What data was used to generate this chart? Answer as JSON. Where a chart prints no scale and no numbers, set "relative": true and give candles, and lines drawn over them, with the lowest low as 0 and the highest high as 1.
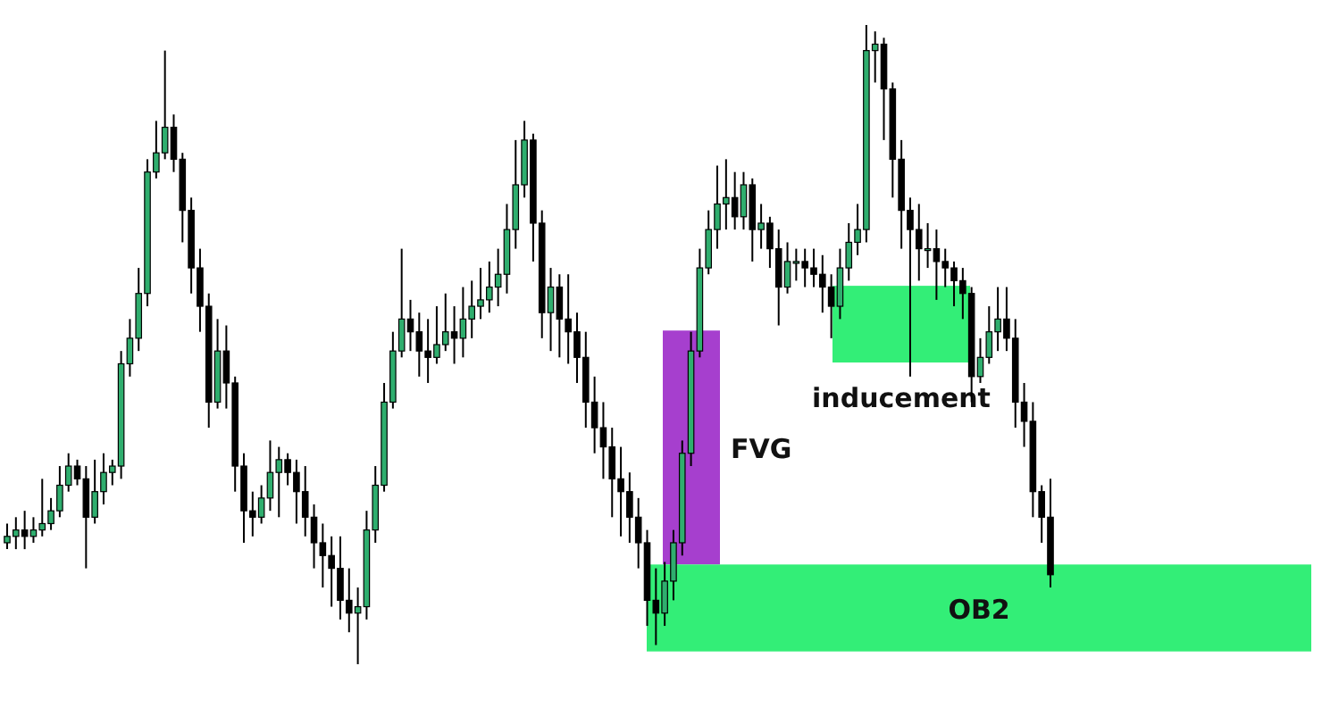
{
  "chart_data": {
    "type": "candlestick",
    "relative": true,
    "categories": [
      null,
      null,
      null,
      null,
      null,
      null,
      null,
      null,
      null,
      null,
      null,
      null,
      null,
      null,
      null,
      null,
      null,
      null,
      null,
      null,
      null,
      null,
      null,
      null,
      null,
      null,
      null,
      null,
      null,
      null,
      null,
      null,
      null,
      null,
      null,
      null,
      null,
      null,
      null,
      null,
      null,
      null,
      null,
      null,
      null,
      null,
      null,
      null,
      null,
      null,
      null,
      null,
      null,
      null,
      null,
      null,
      null,
      null,
      null,
      null,
      null,
      null,
      null,
      null,
      null,
      null,
      null,
      null,
      null,
      null,
      null,
      null,
      null,
      null,
      null,
      null,
      null,
      null,
      null,
      null,
      null,
      null,
      null,
      null,
      null,
      null,
      null,
      null,
      null,
      null,
      null,
      null,
      null,
      null,
      null,
      null,
      null,
      null,
      null,
      null,
      null,
      null,
      null,
      null,
      null,
      null,
      null,
      null,
      null,
      null,
      null,
      null,
      null,
      null,
      null,
      null,
      null,
      null,
      null,
      null
    ],
    "ohlc": [
      [
        0.19,
        0.22,
        0.18,
        0.2
      ],
      [
        0.2,
        0.23,
        0.18,
        0.21
      ],
      [
        0.21,
        0.24,
        0.18,
        0.2
      ],
      [
        0.2,
        0.23,
        0.19,
        0.21
      ],
      [
        0.21,
        0.29,
        0.2,
        0.22
      ],
      [
        0.22,
        0.26,
        0.21,
        0.24
      ],
      [
        0.24,
        0.31,
        0.23,
        0.28
      ],
      [
        0.28,
        0.33,
        0.27,
        0.31
      ],
      [
        0.31,
        0.32,
        0.28,
        0.29
      ],
      [
        0.29,
        0.31,
        0.15,
        0.23
      ],
      [
        0.23,
        0.32,
        0.22,
        0.27
      ],
      [
        0.27,
        0.33,
        0.25,
        0.3
      ],
      [
        0.3,
        0.32,
        0.28,
        0.31
      ],
      [
        0.31,
        0.49,
        0.29,
        0.47
      ],
      [
        0.47,
        0.54,
        0.45,
        0.51
      ],
      [
        0.51,
        0.62,
        0.49,
        0.58
      ],
      [
        0.58,
        0.79,
        0.56,
        0.77
      ],
      [
        0.77,
        0.85,
        0.76,
        0.8
      ],
      [
        0.8,
        0.96,
        0.79,
        0.84
      ],
      [
        0.84,
        0.86,
        0.77,
        0.79
      ],
      [
        0.79,
        0.8,
        0.66,
        0.71
      ],
      [
        0.71,
        0.73,
        0.58,
        0.62
      ],
      [
        0.62,
        0.65,
        0.52,
        0.56
      ],
      [
        0.56,
        0.58,
        0.37,
        0.41
      ],
      [
        0.41,
        0.54,
        0.4,
        0.49
      ],
      [
        0.49,
        0.53,
        0.4,
        0.44
      ],
      [
        0.44,
        0.45,
        0.27,
        0.31
      ],
      [
        0.31,
        0.33,
        0.19,
        0.24
      ],
      [
        0.24,
        0.27,
        0.2,
        0.23
      ],
      [
        0.23,
        0.28,
        0.22,
        0.26
      ],
      [
        0.26,
        0.35,
        0.24,
        0.3
      ],
      [
        0.3,
        0.34,
        0.23,
        0.32
      ],
      [
        0.32,
        0.33,
        0.28,
        0.3
      ],
      [
        0.3,
        0.32,
        0.22,
        0.27
      ],
      [
        0.27,
        0.31,
        0.2,
        0.23
      ],
      [
        0.23,
        0.25,
        0.15,
        0.19
      ],
      [
        0.19,
        0.22,
        0.12,
        0.17
      ],
      [
        0.17,
        0.2,
        0.09,
        0.15
      ],
      [
        0.15,
        0.2,
        0.07,
        0.1
      ],
      [
        0.1,
        0.15,
        0.05,
        0.08
      ],
      [
        0.08,
        0.12,
        0,
        0.09
      ],
      [
        0.09,
        0.24,
        0.07,
        0.21
      ],
      [
        0.21,
        0.31,
        0.19,
        0.28
      ],
      [
        0.28,
        0.44,
        0.27,
        0.41
      ],
      [
        0.41,
        0.52,
        0.4,
        0.49
      ],
      [
        0.49,
        0.65,
        0.48,
        0.54
      ],
      [
        0.54,
        0.57,
        0.49,
        0.52
      ],
      [
        0.52,
        0.55,
        0.45,
        0.49
      ],
      [
        0.49,
        0.54,
        0.44,
        0.48
      ],
      [
        0.48,
        0.56,
        0.47,
        0.5
      ],
      [
        0.5,
        0.58,
        0.49,
        0.52
      ],
      [
        0.52,
        0.56,
        0.47,
        0.51
      ],
      [
        0.51,
        0.59,
        0.48,
        0.54
      ],
      [
        0.54,
        0.6,
        0.51,
        0.56
      ],
      [
        0.56,
        0.62,
        0.54,
        0.57
      ],
      [
        0.57,
        0.63,
        0.55,
        0.59
      ],
      [
        0.59,
        0.65,
        0.56,
        0.61
      ],
      [
        0.61,
        0.72,
        0.58,
        0.68
      ],
      [
        0.68,
        0.82,
        0.65,
        0.75
      ],
      [
        0.75,
        0.85,
        0.73,
        0.82
      ],
      [
        0.82,
        0.83,
        0.63,
        0.69
      ],
      [
        0.69,
        0.71,
        0.51,
        0.55
      ],
      [
        0.55,
        0.62,
        0.49,
        0.59
      ],
      [
        0.59,
        0.61,
        0.48,
        0.54
      ],
      [
        0.54,
        0.61,
        0.47,
        0.52
      ],
      [
        0.52,
        0.55,
        0.44,
        0.48
      ],
      [
        0.48,
        0.52,
        0.37,
        0.41
      ],
      [
        0.41,
        0.45,
        0.33,
        0.37
      ],
      [
        0.37,
        0.41,
        0.29,
        0.34
      ],
      [
        0.34,
        0.37,
        0.23,
        0.29
      ],
      [
        0.29,
        0.34,
        0.2,
        0.27
      ],
      [
        0.27,
        0.3,
        0.19,
        0.23
      ],
      [
        0.23,
        0.26,
        0.15,
        0.19
      ],
      [
        0.19,
        0.21,
        0.06,
        0.1
      ],
      [
        0.1,
        0.15,
        0.03,
        0.08
      ],
      [
        0.08,
        0.16,
        0.06,
        0.13
      ],
      [
        0.13,
        0.21,
        0.1,
        0.19
      ],
      [
        0.19,
        0.35,
        0.17,
        0.33
      ],
      [
        0.33,
        0.52,
        0.31,
        0.49
      ],
      [
        0.49,
        0.65,
        0.48,
        0.62
      ],
      [
        0.62,
        0.71,
        0.61,
        0.68
      ],
      [
        0.68,
        0.78,
        0.65,
        0.72
      ],
      [
        0.72,
        0.79,
        0.68,
        0.73
      ],
      [
        0.73,
        0.77,
        0.68,
        0.7
      ],
      [
        0.7,
        0.77,
        0.68,
        0.75
      ],
      [
        0.75,
        0.76,
        0.63,
        0.68
      ],
      [
        0.68,
        0.72,
        0.65,
        0.69
      ],
      [
        0.69,
        0.7,
        0.62,
        0.65
      ],
      [
        0.65,
        0.68,
        0.53,
        0.59
      ],
      [
        0.59,
        0.66,
        0.58,
        0.63
      ],
      [
        0.63,
        0.65,
        0.6,
        0.63
      ],
      [
        0.63,
        0.65,
        0.59,
        0.62
      ],
      [
        0.62,
        0.65,
        0.59,
        0.61
      ],
      [
        0.61,
        0.64,
        0.55,
        0.59
      ],
      [
        0.59,
        0.61,
        0.51,
        0.56
      ],
      [
        0.56,
        0.65,
        0.54,
        0.62
      ],
      [
        0.62,
        0.69,
        0.6,
        0.66
      ],
      [
        0.66,
        0.72,
        0.64,
        0.68
      ],
      [
        0.68,
        1,
        0.66,
        0.96
      ],
      [
        0.96,
        0.99,
        0.91,
        0.97
      ],
      [
        0.97,
        0.98,
        0.82,
        0.9
      ],
      [
        0.9,
        0.91,
        0.73,
        0.79
      ],
      [
        0.79,
        0.82,
        0.65,
        0.71
      ],
      [
        0.71,
        0.73,
        0.45,
        0.68
      ],
      [
        0.68,
        0.72,
        0.6,
        0.65
      ],
      [
        0.65,
        0.69,
        0.62,
        0.65
      ],
      [
        0.65,
        0.68,
        0.57,
        0.63
      ],
      [
        0.63,
        0.65,
        0.59,
        0.62
      ],
      [
        0.62,
        0.63,
        0.56,
        0.6
      ],
      [
        0.6,
        0.62,
        0.54,
        0.58
      ],
      [
        0.58,
        0.59,
        0.41,
        0.45
      ],
      [
        0.45,
        0.51,
        0.44,
        0.48
      ],
      [
        0.48,
        0.56,
        0.47,
        0.52
      ],
      [
        0.52,
        0.59,
        0.49,
        0.54
      ],
      [
        0.54,
        0.59,
        0.49,
        0.51
      ],
      [
        0.51,
        0.54,
        0.37,
        0.41
      ],
      [
        0.41,
        0.44,
        0.34,
        0.38
      ],
      [
        0.38,
        0.41,
        0.23,
        0.27
      ],
      [
        0.27,
        0.28,
        0.19,
        0.23
      ],
      [
        0.23,
        0.29,
        0.12,
        0.14
      ]
    ],
    "bands": [
      {
        "axis": "y",
        "from": 0.156,
        "to": 0.522,
        "label": "FVG",
        "color": "#a63fce"
      },
      {
        "axis": "y",
        "from": 0.472,
        "to": 0.592,
        "label": "inducement",
        "color": "#33ee77"
      },
      {
        "axis": "y",
        "from": 0.02,
        "to": 0.156,
        "label": "OB2",
        "color": "#33ee77"
      }
    ]
  }
}
